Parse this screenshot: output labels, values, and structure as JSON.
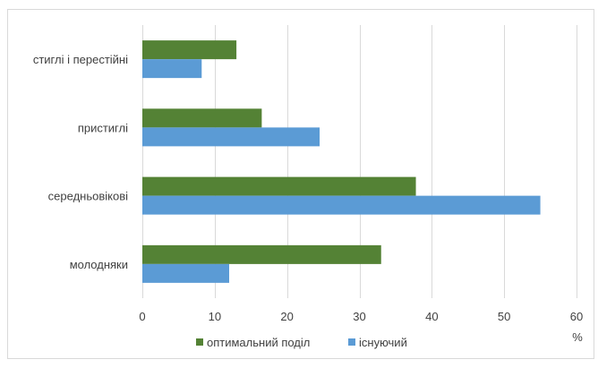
{
  "chart_data": {
    "type": "bar",
    "orientation": "horizontal",
    "categories": [
      "стиглі і перестійні",
      "пристиглі",
      "середньовікові",
      "молодняки"
    ],
    "series": [
      {
        "name": "оптимальний поділ",
        "values": [
          13,
          16.5,
          37.8,
          33
        ],
        "color": "#548235"
      },
      {
        "name": "існуючий",
        "values": [
          8.2,
          24.5,
          55,
          12
        ],
        "color": "#5B9BD5"
      }
    ],
    "xlim": [
      0,
      60
    ],
    "xticks": [
      0,
      10,
      20,
      30,
      40,
      50,
      60
    ],
    "xlabel": "%",
    "grid": true,
    "legend_position": "bottom"
  }
}
